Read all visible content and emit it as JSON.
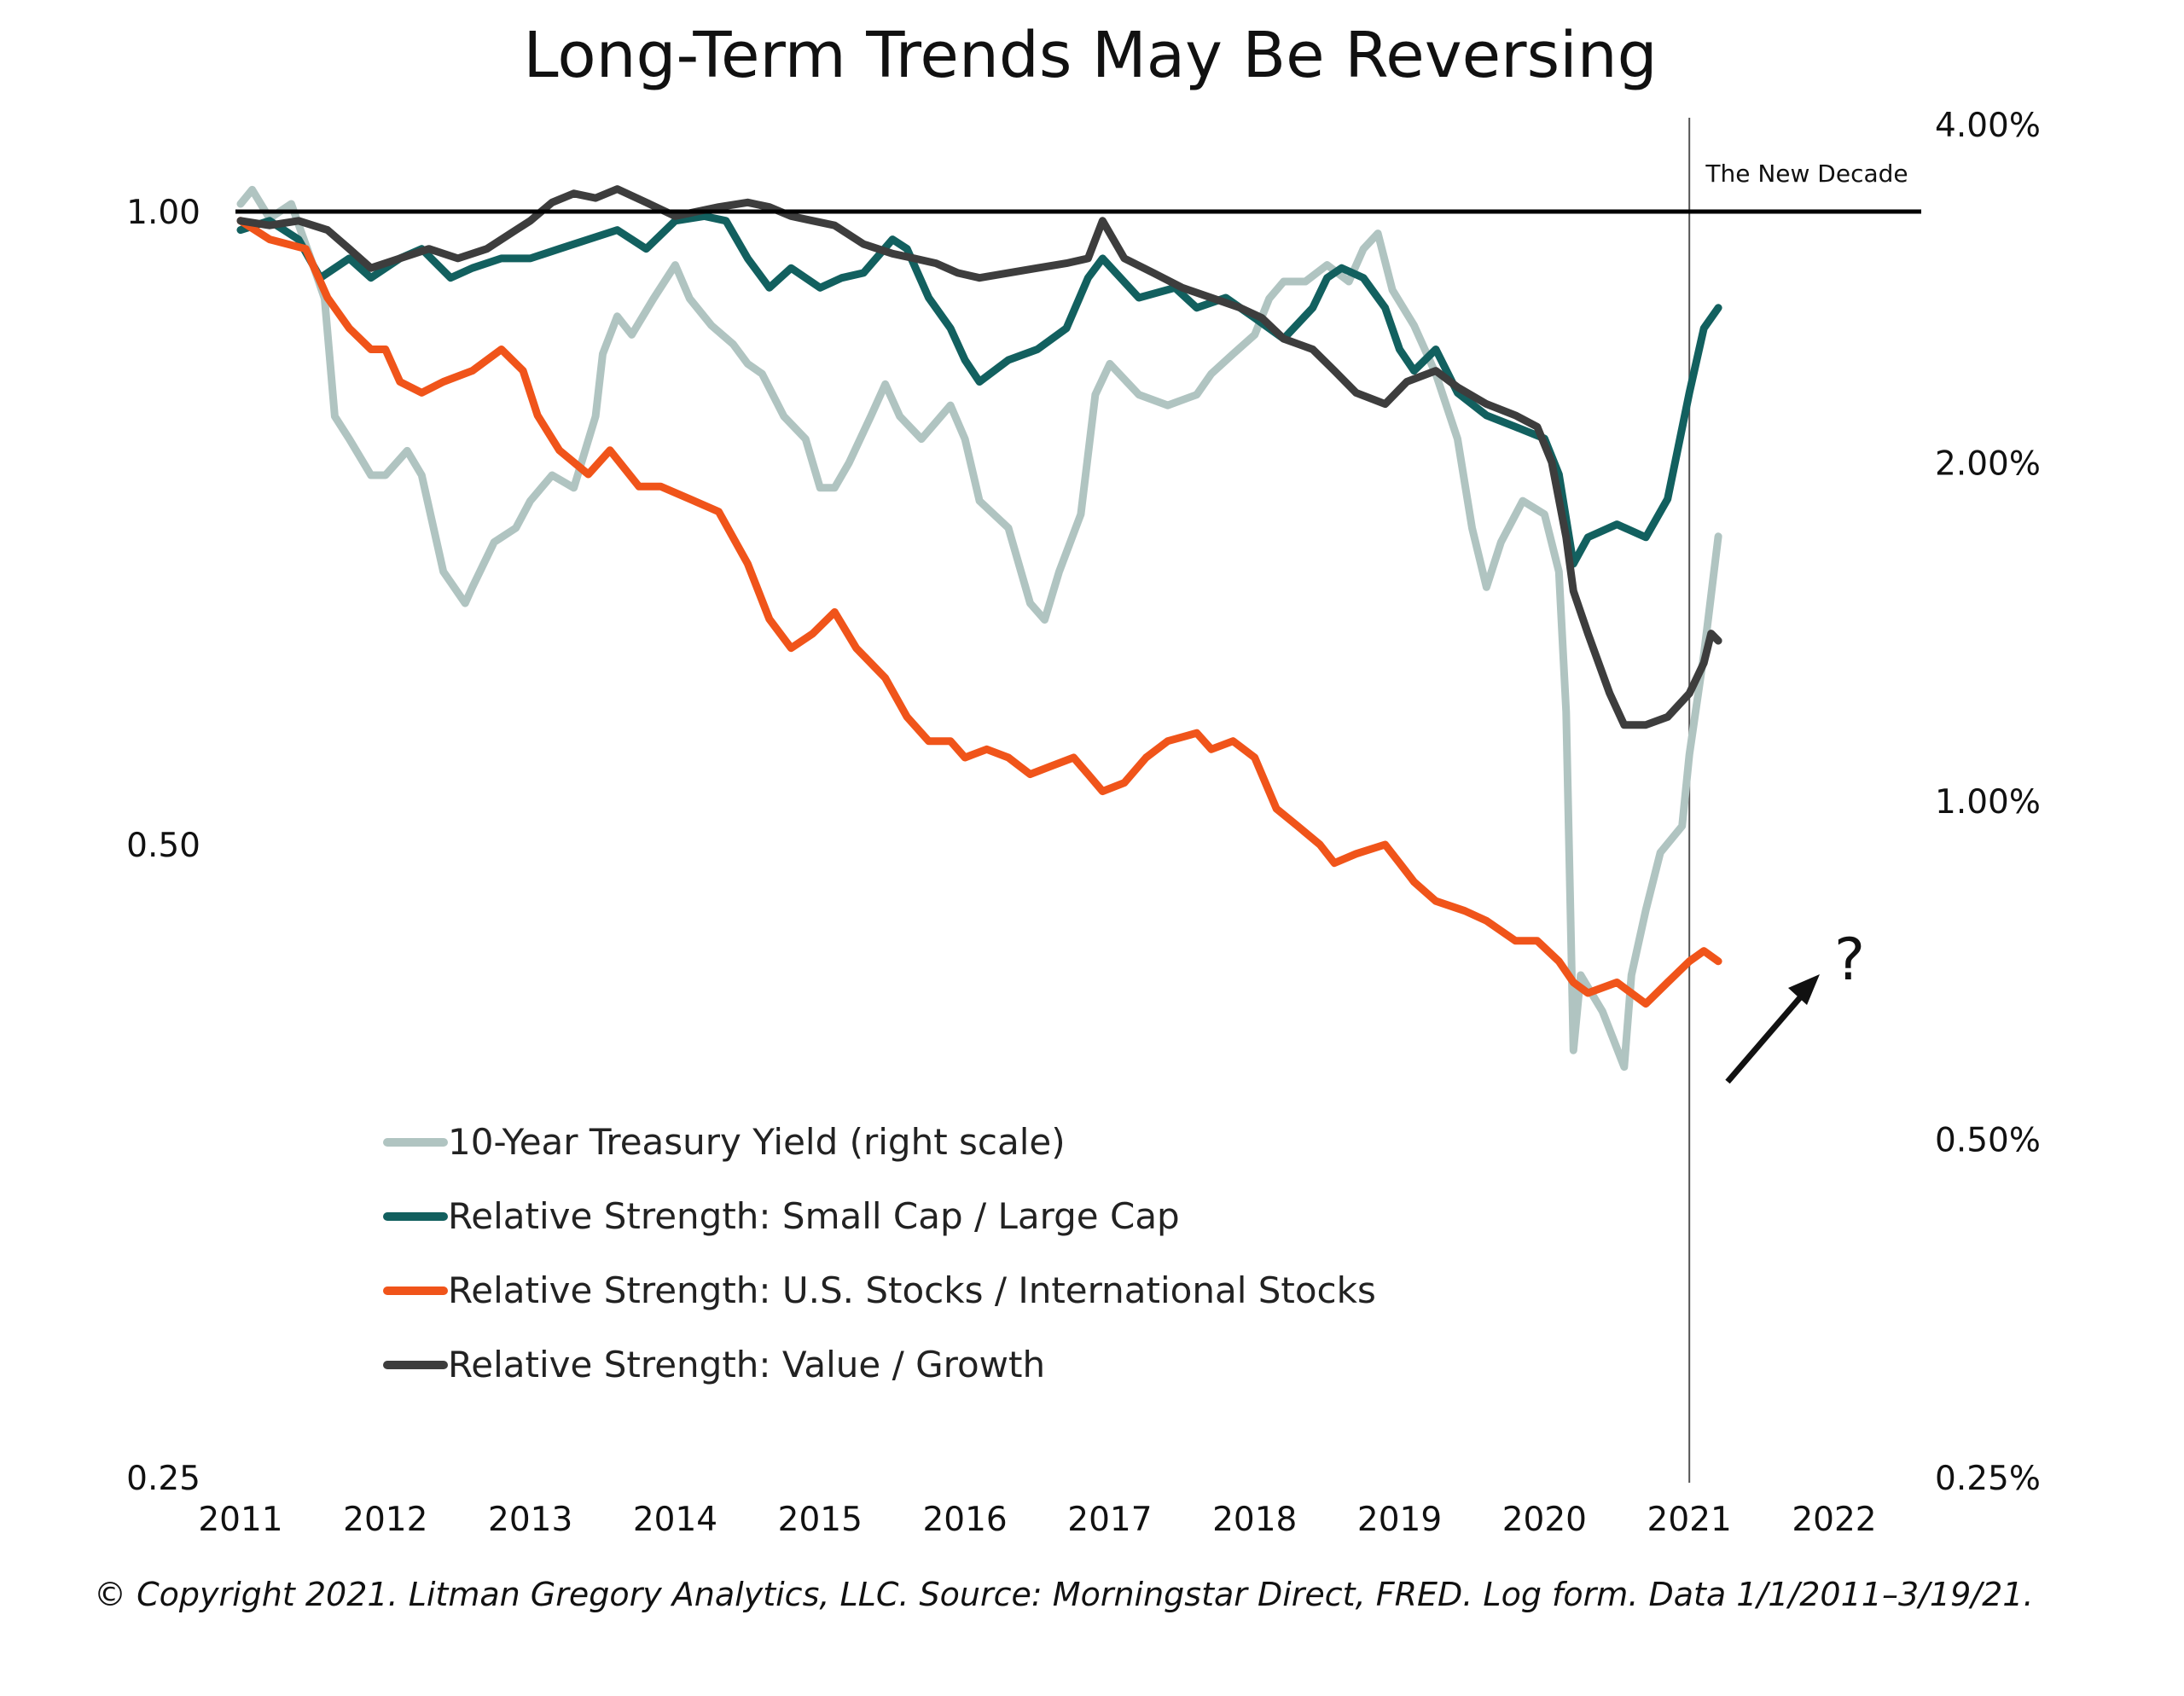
{
  "chart_data": {
    "type": "line",
    "title": "Long-Term Trends May Be Reversing",
    "footer": "© Copyright 2021. Litman Gregory Analytics, LLC. Source: Morningstar Direct, FRED. Log form. Data 1/1/2011–3/19/21.",
    "annotation_text": "The New Decade",
    "annotation_symbol": "?",
    "x_ticks": [
      "2011",
      "2012",
      "2013",
      "2014",
      "2015",
      "2016",
      "2017",
      "2018",
      "2019",
      "2020",
      "2021",
      "2022"
    ],
    "xlim": [
      2011,
      2022
    ],
    "y_left": {
      "scale": "log",
      "range": [
        0.25,
        1.3
      ],
      "ticks": [
        1.0,
        0.5,
        0.25
      ],
      "tick_labels": [
        "1.00",
        "0.50",
        "0.25"
      ]
    },
    "y_right": {
      "scale": "log",
      "range": [
        0.25,
        4.0
      ],
      "ticks": [
        4.0,
        2.0,
        1.0,
        0.5,
        0.25
      ],
      "tick_labels": [
        "4.00%",
        "2.00%",
        "1.00%",
        "0.50%",
        "0.25%"
      ]
    },
    "reference_line_y": 1.0,
    "divider_x": 2021.0,
    "colors": {
      "treasury": "#b0c4c1",
      "smallcap": "#12605f",
      "usintl": "#f0541a",
      "value": "#3d3d3d",
      "reference": "#000000"
    },
    "series": [
      {
        "key": "treasury",
        "name": "10-Year Treasury Yield (right scale)",
        "axis": "right",
        "x": [
          2011.0,
          2011.08,
          2011.2,
          2011.35,
          2011.5,
          2011.58,
          2011.65,
          2011.75,
          2011.9,
          2012.0,
          2012.15,
          2012.25,
          2012.4,
          2012.55,
          2012.6,
          2012.75,
          2012.9,
          2013.0,
          2013.15,
          2013.3,
          2013.45,
          2013.5,
          2013.6,
          2013.7,
          2013.85,
          2014.0,
          2014.1,
          2014.25,
          2014.4,
          2014.5,
          2014.6,
          2014.75,
          2014.9,
          2015.0,
          2015.1,
          2015.2,
          2015.35,
          2015.45,
          2015.55,
          2015.7,
          2015.9,
          2016.0,
          2016.1,
          2016.3,
          2016.45,
          2016.55,
          2016.65,
          2016.8,
          2016.9,
          2017.0,
          2017.2,
          2017.4,
          2017.6,
          2017.7,
          2017.85,
          2018.0,
          2018.1,
          2018.2,
          2018.35,
          2018.5,
          2018.65,
          2018.75,
          2018.85,
          2018.95,
          2019.1,
          2019.25,
          2019.4,
          2019.5,
          2019.6,
          2019.7,
          2019.85,
          2020.0,
          2020.1,
          2020.15,
          2020.2,
          2020.25,
          2020.4,
          2020.55,
          2020.6,
          2020.7,
          2020.8,
          2020.95,
          2021.0,
          2021.1,
          2021.2
        ],
        "values": [
          3.4,
          3.5,
          3.3,
          3.4,
          3.0,
          2.8,
          2.2,
          2.1,
          1.95,
          1.95,
          2.05,
          1.95,
          1.6,
          1.5,
          1.55,
          1.7,
          1.75,
          1.85,
          1.95,
          1.9,
          2.2,
          2.5,
          2.7,
          2.6,
          2.8,
          3.0,
          2.8,
          2.65,
          2.55,
          2.45,
          2.4,
          2.2,
          2.1,
          1.9,
          1.9,
          2.0,
          2.2,
          2.35,
          2.2,
          2.1,
          2.25,
          2.1,
          1.85,
          1.75,
          1.5,
          1.45,
          1.6,
          1.8,
          2.3,
          2.45,
          2.3,
          2.25,
          2.3,
          2.4,
          2.5,
          2.6,
          2.8,
          2.9,
          2.9,
          3.0,
          2.9,
          3.1,
          3.2,
          2.85,
          2.65,
          2.4,
          2.1,
          1.75,
          1.55,
          1.7,
          1.85,
          1.8,
          1.6,
          1.2,
          0.6,
          0.7,
          0.65,
          0.58,
          0.7,
          0.8,
          0.9,
          0.95,
          1.1,
          1.35,
          1.72
        ]
      },
      {
        "key": "smallcap",
        "name": "Relative Strength: Small Cap / Large Cap",
        "axis": "left",
        "x": [
          2011.0,
          2011.2,
          2011.4,
          2011.55,
          2011.75,
          2011.9,
          2012.1,
          2012.25,
          2012.45,
          2012.6,
          2012.8,
          2013.0,
          2013.2,
          2013.4,
          2013.6,
          2013.8,
          2014.0,
          2014.2,
          2014.35,
          2014.5,
          2014.65,
          2014.8,
          2015.0,
          2015.15,
          2015.3,
          2015.5,
          2015.6,
          2015.75,
          2015.9,
          2016.0,
          2016.1,
          2016.3,
          2016.5,
          2016.7,
          2016.85,
          2016.95,
          2017.2,
          2017.45,
          2017.6,
          2017.8,
          2018.0,
          2018.2,
          2018.4,
          2018.5,
          2018.6,
          2018.75,
          2018.9,
          2019.0,
          2019.1,
          2019.25,
          2019.4,
          2019.6,
          2019.8,
          2020.0,
          2020.1,
          2020.2,
          2020.3,
          2020.5,
          2020.7,
          2020.85,
          2021.0,
          2021.1,
          2021.2
        ],
        "values": [
          0.98,
          0.99,
          0.97,
          0.93,
          0.95,
          0.93,
          0.95,
          0.96,
          0.93,
          0.94,
          0.95,
          0.95,
          0.96,
          0.97,
          0.98,
          0.96,
          0.99,
          0.995,
          0.99,
          0.95,
          0.92,
          0.94,
          0.92,
          0.93,
          0.935,
          0.97,
          0.96,
          0.91,
          0.88,
          0.85,
          0.83,
          0.85,
          0.86,
          0.88,
          0.93,
          0.95,
          0.91,
          0.92,
          0.9,
          0.91,
          0.89,
          0.87,
          0.9,
          0.93,
          0.94,
          0.93,
          0.9,
          0.86,
          0.84,
          0.86,
          0.82,
          0.8,
          0.79,
          0.78,
          0.75,
          0.68,
          0.7,
          0.71,
          0.7,
          0.73,
          0.82,
          0.88,
          0.9
        ]
      },
      {
        "key": "usintl",
        "name": "Relative Strength: U.S. Stocks / International Stocks",
        "axis": "left",
        "x": [
          2011.0,
          2011.2,
          2011.45,
          2011.6,
          2011.75,
          2011.9,
          2012.0,
          2012.1,
          2012.25,
          2012.4,
          2012.6,
          2012.8,
          2012.95,
          2013.05,
          2013.2,
          2013.4,
          2013.55,
          2013.75,
          2013.9,
          2014.1,
          2014.3,
          2014.5,
          2014.65,
          2014.8,
          2014.95,
          2015.1,
          2015.25,
          2015.45,
          2015.6,
          2015.75,
          2015.9,
          2016.0,
          2016.15,
          2016.3,
          2016.45,
          2016.6,
          2016.75,
          2016.85,
          2016.95,
          2017.1,
          2017.25,
          2017.4,
          2017.6,
          2017.7,
          2017.85,
          2018.0,
          2018.15,
          2018.3,
          2018.45,
          2018.55,
          2018.7,
          2018.9,
          2019.0,
          2019.1,
          2019.25,
          2019.45,
          2019.6,
          2019.8,
          2019.95,
          2020.1,
          2020.2,
          2020.3,
          2020.5,
          2020.7,
          2020.85,
          2021.0,
          2021.1,
          2021.2
        ],
        "values": [
          0.99,
          0.97,
          0.96,
          0.91,
          0.88,
          0.86,
          0.86,
          0.83,
          0.82,
          0.83,
          0.84,
          0.86,
          0.84,
          0.8,
          0.77,
          0.75,
          0.77,
          0.74,
          0.74,
          0.73,
          0.72,
          0.68,
          0.64,
          0.62,
          0.63,
          0.645,
          0.62,
          0.6,
          0.575,
          0.56,
          0.56,
          0.55,
          0.555,
          0.55,
          0.54,
          0.545,
          0.55,
          0.54,
          0.53,
          0.535,
          0.55,
          0.56,
          0.565,
          0.555,
          0.56,
          0.55,
          0.52,
          0.51,
          0.5,
          0.49,
          0.495,
          0.5,
          0.49,
          0.48,
          0.47,
          0.465,
          0.46,
          0.45,
          0.45,
          0.44,
          0.43,
          0.425,
          0.43,
          0.42,
          0.43,
          0.44,
          0.445,
          0.44
        ]
      },
      {
        "key": "value",
        "name": "Relative Strength: Value / Growth",
        "axis": "left",
        "x": [
          2011.0,
          2011.2,
          2011.4,
          2011.6,
          2011.75,
          2011.9,
          2012.1,
          2012.3,
          2012.5,
          2012.7,
          2012.9,
          2013.0,
          2013.15,
          2013.3,
          2013.45,
          2013.6,
          2013.8,
          2014.0,
          2014.15,
          2014.3,
          2014.5,
          2014.65,
          2014.8,
          2014.95,
          2015.1,
          2015.3,
          2015.5,
          2015.65,
          2015.8,
          2015.95,
          2016.1,
          2016.3,
          2016.5,
          2016.7,
          2016.85,
          2016.95,
          2017.1,
          2017.3,
          2017.5,
          2017.7,
          2017.9,
          2018.05,
          2018.2,
          2018.4,
          2018.55,
          2018.7,
          2018.9,
          2019.05,
          2019.25,
          2019.4,
          2019.6,
          2019.8,
          2019.95,
          2020.05,
          2020.15,
          2020.2,
          2020.3,
          2020.45,
          2020.55,
          2020.7,
          2020.85,
          2021.0,
          2021.1,
          2021.15,
          2021.2
        ],
        "values": [
          0.99,
          0.985,
          0.99,
          0.98,
          0.96,
          0.94,
          0.95,
          0.96,
          0.95,
          0.96,
          0.98,
          0.99,
          1.01,
          1.02,
          1.015,
          1.025,
          1.01,
          0.995,
          1.0,
          1.005,
          1.01,
          1.005,
          0.995,
          0.99,
          0.985,
          0.965,
          0.955,
          0.95,
          0.945,
          0.935,
          0.93,
          0.935,
          0.94,
          0.945,
          0.95,
          0.99,
          0.95,
          0.935,
          0.92,
          0.91,
          0.9,
          0.89,
          0.87,
          0.86,
          0.84,
          0.82,
          0.81,
          0.83,
          0.84,
          0.825,
          0.81,
          0.8,
          0.79,
          0.76,
          0.7,
          0.66,
          0.63,
          0.59,
          0.57,
          0.57,
          0.575,
          0.59,
          0.61,
          0.63,
          0.625
        ]
      }
    ]
  }
}
